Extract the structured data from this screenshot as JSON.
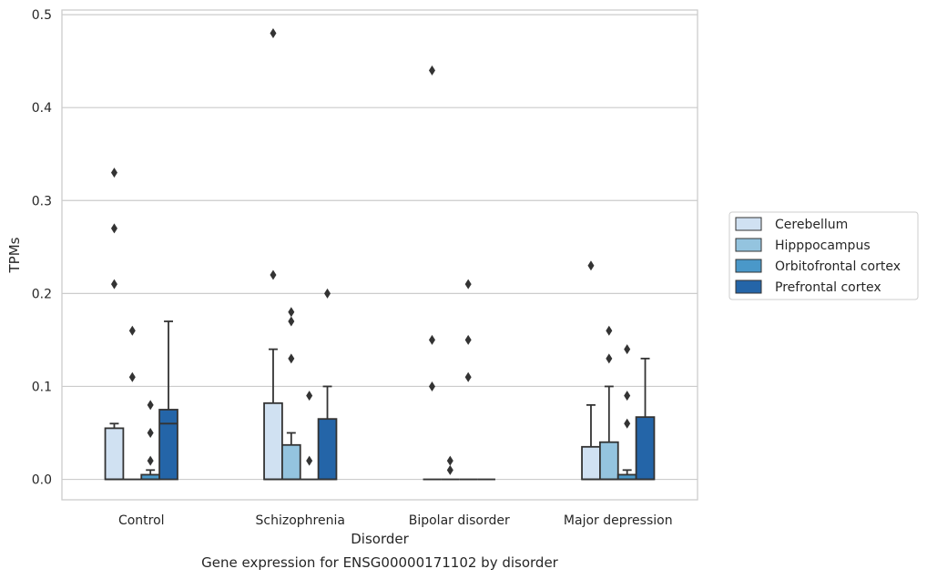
{
  "chart_data": {
    "type": "boxplot",
    "title": "",
    "caption": "Gene expression for ENSG00000171102 by disorder",
    "xlabel": "Disorder",
    "ylabel": "TPMs",
    "ylim": [
      -0.022,
      0.505
    ],
    "yticks": [
      0.0,
      0.1,
      0.2,
      0.3,
      0.4,
      0.5
    ],
    "ytick_labels": [
      "0.0",
      "0.1",
      "0.2",
      "0.3",
      "0.4",
      "0.5"
    ],
    "grid": "horizontal",
    "legend_position": "right",
    "categories": [
      "Control",
      "Schizophrenia",
      "Bipolar disorder",
      "Major depression"
    ],
    "series": [
      {
        "name": "Cerebellum",
        "color": "#d0e1f2",
        "boxes": [
          {
            "q1": 0.0,
            "median": 0.0,
            "q3": 0.055,
            "whisker_low": 0.0,
            "whisker_high": 0.06,
            "outliers": [
              0.33,
              0.27,
              0.21
            ]
          },
          {
            "q1": 0.0,
            "median": 0.0,
            "q3": 0.082,
            "whisker_low": 0.0,
            "whisker_high": 0.14,
            "outliers": [
              0.48,
              0.22
            ]
          },
          {
            "q1": 0.0,
            "median": 0.0,
            "q3": 0.0,
            "whisker_low": 0.0,
            "whisker_high": 0.0,
            "outliers": [
              0.44,
              0.15,
              0.1
            ]
          },
          {
            "q1": 0.0,
            "median": 0.0,
            "q3": 0.035,
            "whisker_low": 0.0,
            "whisker_high": 0.08,
            "outliers": [
              0.23
            ]
          }
        ]
      },
      {
        "name": "Hipppocampus",
        "color": "#94c4df",
        "boxes": [
          {
            "q1": 0.0,
            "median": 0.0,
            "q3": 0.0,
            "whisker_low": 0.0,
            "whisker_high": 0.0,
            "outliers": [
              0.16,
              0.11
            ]
          },
          {
            "q1": 0.0,
            "median": 0.0,
            "q3": 0.037,
            "whisker_low": 0.0,
            "whisker_high": 0.05,
            "outliers": [
              0.18,
              0.17,
              0.13
            ]
          },
          {
            "q1": 0.0,
            "median": 0.0,
            "q3": 0.0,
            "whisker_low": 0.0,
            "whisker_high": 0.0,
            "outliers": [
              0.02,
              0.01
            ]
          },
          {
            "q1": 0.0,
            "median": 0.0,
            "q3": 0.04,
            "whisker_low": 0.0,
            "whisker_high": 0.1,
            "outliers": [
              0.16,
              0.13
            ]
          }
        ]
      },
      {
        "name": "Orbitofrontal cortex",
        "color": "#4a98c9",
        "boxes": [
          {
            "q1": 0.0,
            "median": 0.0,
            "q3": 0.005,
            "whisker_low": 0.0,
            "whisker_high": 0.01,
            "outliers": [
              0.08,
              0.05,
              0.02
            ]
          },
          {
            "q1": 0.0,
            "median": 0.0,
            "q3": 0.0,
            "whisker_low": 0.0,
            "whisker_high": 0.0,
            "outliers": [
              0.09,
              0.02
            ]
          },
          {
            "q1": 0.0,
            "median": 0.0,
            "q3": 0.0,
            "whisker_low": 0.0,
            "whisker_high": 0.0,
            "outliers": [
              0.21,
              0.15,
              0.11
            ]
          },
          {
            "q1": 0.0,
            "median": 0.0,
            "q3": 0.005,
            "whisker_low": 0.0,
            "whisker_high": 0.01,
            "outliers": [
              0.14,
              0.09,
              0.06
            ]
          }
        ]
      },
      {
        "name": "Prefrontal cortex",
        "color": "#2465a8",
        "boxes": [
          {
            "q1": 0.0,
            "median": 0.06,
            "q3": 0.075,
            "whisker_low": 0.0,
            "whisker_high": 0.17,
            "outliers": []
          },
          {
            "q1": 0.0,
            "median": 0.0,
            "q3": 0.065,
            "whisker_low": 0.0,
            "whisker_high": 0.1,
            "outliers": [
              0.2
            ]
          },
          {
            "q1": 0.0,
            "median": 0.0,
            "q3": 0.0,
            "whisker_low": 0.0,
            "whisker_high": 0.0,
            "outliers": []
          },
          {
            "q1": 0.0,
            "median": 0.0,
            "q3": 0.067,
            "whisker_low": 0.0,
            "whisker_high": 0.13,
            "outliers": []
          }
        ]
      }
    ]
  }
}
